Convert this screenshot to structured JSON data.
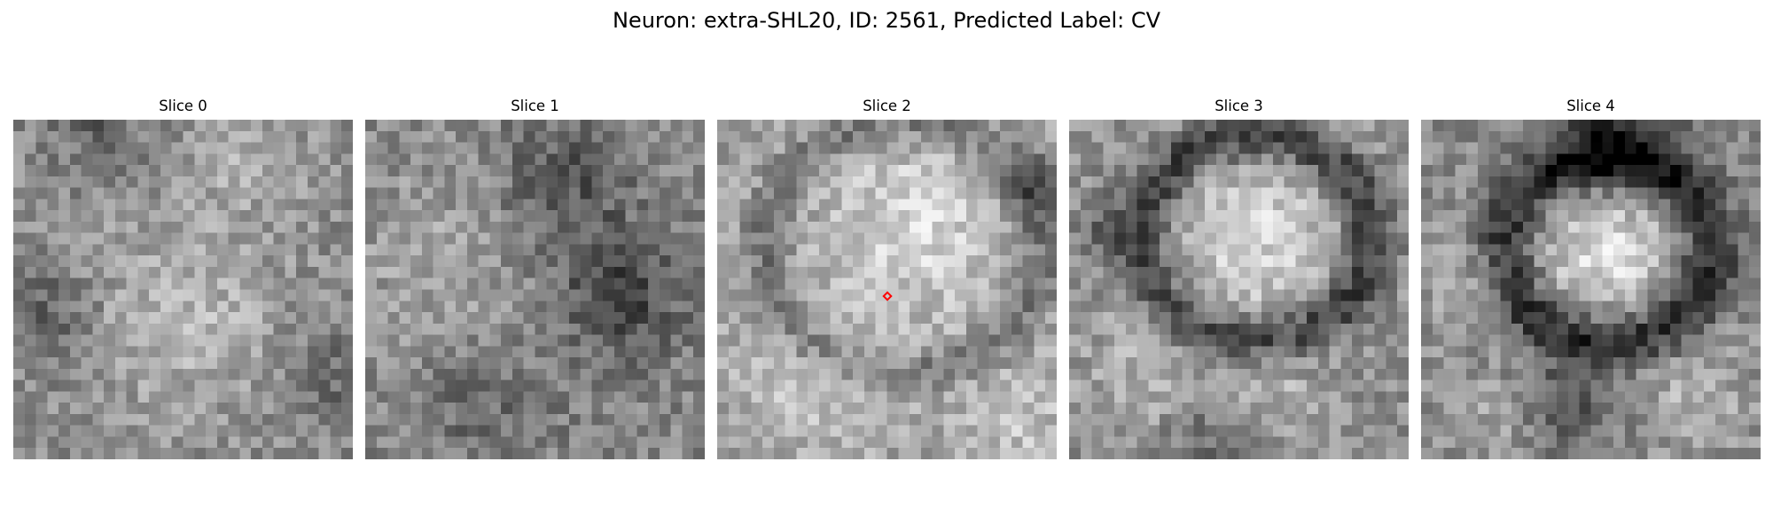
{
  "figure": {
    "title": "Neuron: extra-SHL20, ID: 2561, Predicted Label: CV",
    "colormap": "gray",
    "marker_color": "#ff0000",
    "marker_shape": "diamond",
    "marker_slice": 2
  },
  "slices": [
    {
      "title": "Slice 0",
      "texture": "faint-blobs"
    },
    {
      "title": "Slice 1",
      "texture": "dark-band-right"
    },
    {
      "title": "Slice 2",
      "texture": "bright-cell-center"
    },
    {
      "title": "Slice 3",
      "texture": "cell-with-dark-ring"
    },
    {
      "title": "Slice 4",
      "texture": "cell-with-thick-dark-ring"
    }
  ]
}
